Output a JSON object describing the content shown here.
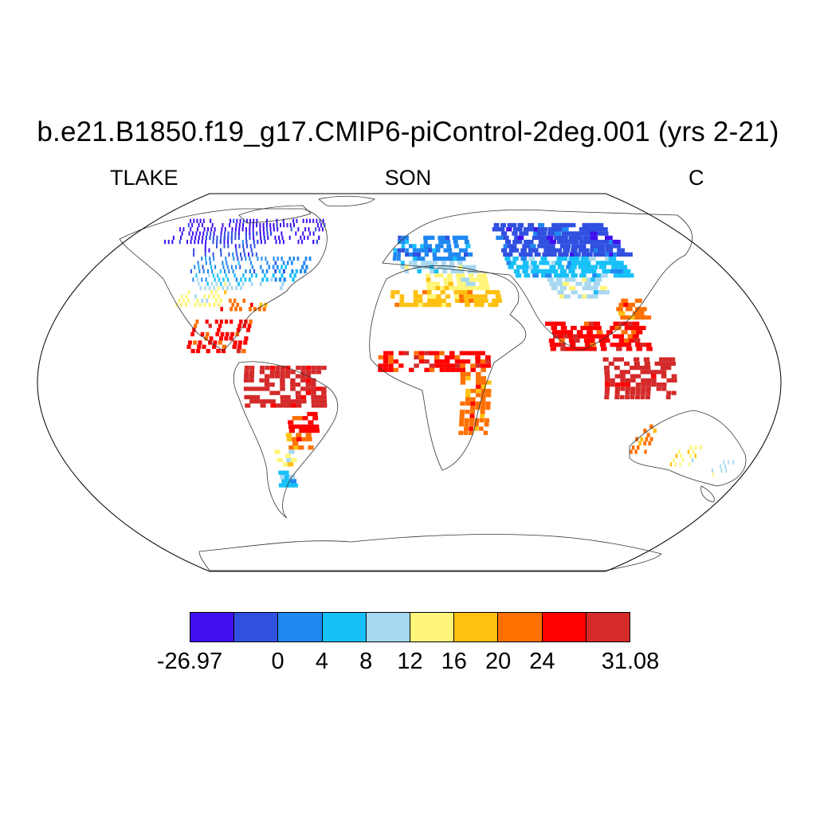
{
  "title": "b.e21.B1850.f19_g17.CMIP6-piControl-2deg.001 (yrs 2-21)",
  "variable_label": "TLAKE",
  "season_label": "SON",
  "units_label": "C",
  "colorbar": {
    "colors": [
      "#4010f0",
      "#3050e0",
      "#2088f0",
      "#18c0f8",
      "#a8d8f0",
      "#fff57a",
      "#ffc010",
      "#ff7000",
      "#ff0000",
      "#d42a2a"
    ],
    "tick_labels": [
      "-26.97",
      "0",
      "4",
      "8",
      "12",
      "16",
      "20",
      "24",
      "31.08"
    ]
  },
  "chart_data": {
    "type": "heatmap",
    "title": "b.e21.B1850.f19_g17.CMIP6-piControl-2deg.001 (yrs 2-21)",
    "left_label": "TLAKE",
    "center_label": "SON",
    "right_label": "C",
    "projection": "Robinson",
    "levels": [
      -26.97,
      0,
      4,
      8,
      12,
      16,
      20,
      24,
      28,
      31.08
    ],
    "data_range": [
      -26.97,
      31.08
    ],
    "regions": [
      {
        "lon": [
          -165,
          -60
        ],
        "lat": [
          66,
          78
        ],
        "bin": 0
      },
      {
        "lon": [
          -140,
          -95
        ],
        "lat": [
          60,
          72
        ],
        "bin": 1
      },
      {
        "lon": [
          -130,
          -60
        ],
        "lat": [
          52,
          60
        ],
        "bin": 2
      },
      {
        "lon": [
          -125,
          -65
        ],
        "lat": [
          48,
          52
        ],
        "bin": 3
      },
      {
        "lon": [
          -120,
          -70
        ],
        "lat": [
          44,
          48
        ],
        "bin": 4
      },
      {
        "lon": [
          -125,
          -100
        ],
        "lat": [
          36,
          44
        ],
        "bin": 5
      },
      {
        "lon": [
          -100,
          -75
        ],
        "lat": [
          34,
          40
        ],
        "bin": 7
      },
      {
        "lon": [
          -110,
          -80
        ],
        "lat": [
          14,
          30
        ],
        "bin": 8
      },
      {
        "lon": [
          -80,
          -40
        ],
        "lat": [
          -12,
          8
        ],
        "bin": 9
      },
      {
        "lon": [
          -60,
          -45
        ],
        "lat": [
          -24,
          -14
        ],
        "bin": 8
      },
      {
        "lon": [
          -62,
          -50
        ],
        "lat": [
          -32,
          -24
        ],
        "bin": 7
      },
      {
        "lon": [
          -70,
          -60
        ],
        "lat": [
          -40,
          -32
        ],
        "bin": 5
      },
      {
        "lon": [
          -74,
          -66
        ],
        "lat": [
          -50,
          -42
        ],
        "bin": 3
      },
      {
        "lon": [
          -10,
          40
        ],
        "lat": [
          58,
          70
        ],
        "bin": 2
      },
      {
        "lon": [
          -5,
          40
        ],
        "lat": [
          52,
          58
        ],
        "bin": 4
      },
      {
        "lon": [
          10,
          45
        ],
        "lat": [
          44,
          52
        ],
        "bin": 5
      },
      {
        "lon": [
          -10,
          50
        ],
        "lat": [
          36,
          44
        ],
        "bin": 6
      },
      {
        "lon": [
          60,
          140
        ],
        "lat": [
          60,
          75
        ],
        "bin": 1
      },
      {
        "lon": [
          60,
          130
        ],
        "lat": [
          50,
          60
        ],
        "bin": 3
      },
      {
        "lon": [
          80,
          110
        ],
        "lat": [
          40,
          50
        ],
        "bin": 4
      },
      {
        "lon": [
          110,
          125
        ],
        "lat": [
          30,
          40
        ],
        "bin": 7
      },
      {
        "lon": [
          70,
          120
        ],
        "lat": [
          15,
          28
        ],
        "bin": 8
      },
      {
        "lon": [
          95,
          130
        ],
        "lat": [
          -8,
          12
        ],
        "bin": 9
      },
      {
        "lon": [
          -15,
          40
        ],
        "lat": [
          5,
          15
        ],
        "bin": 8
      },
      {
        "lon": [
          25,
          40
        ],
        "lat": [
          -25,
          5
        ],
        "bin": 7
      },
      {
        "lon": [
          115,
          125
        ],
        "lat": [
          -34,
          -20
        ],
        "bin": 7
      },
      {
        "lon": [
          140,
          152
        ],
        "lat": [
          -40,
          -30
        ],
        "bin": 5
      },
      {
        "lon": [
          165,
          175
        ],
        "lat": [
          -45,
          -38
        ],
        "bin": 4
      }
    ]
  }
}
